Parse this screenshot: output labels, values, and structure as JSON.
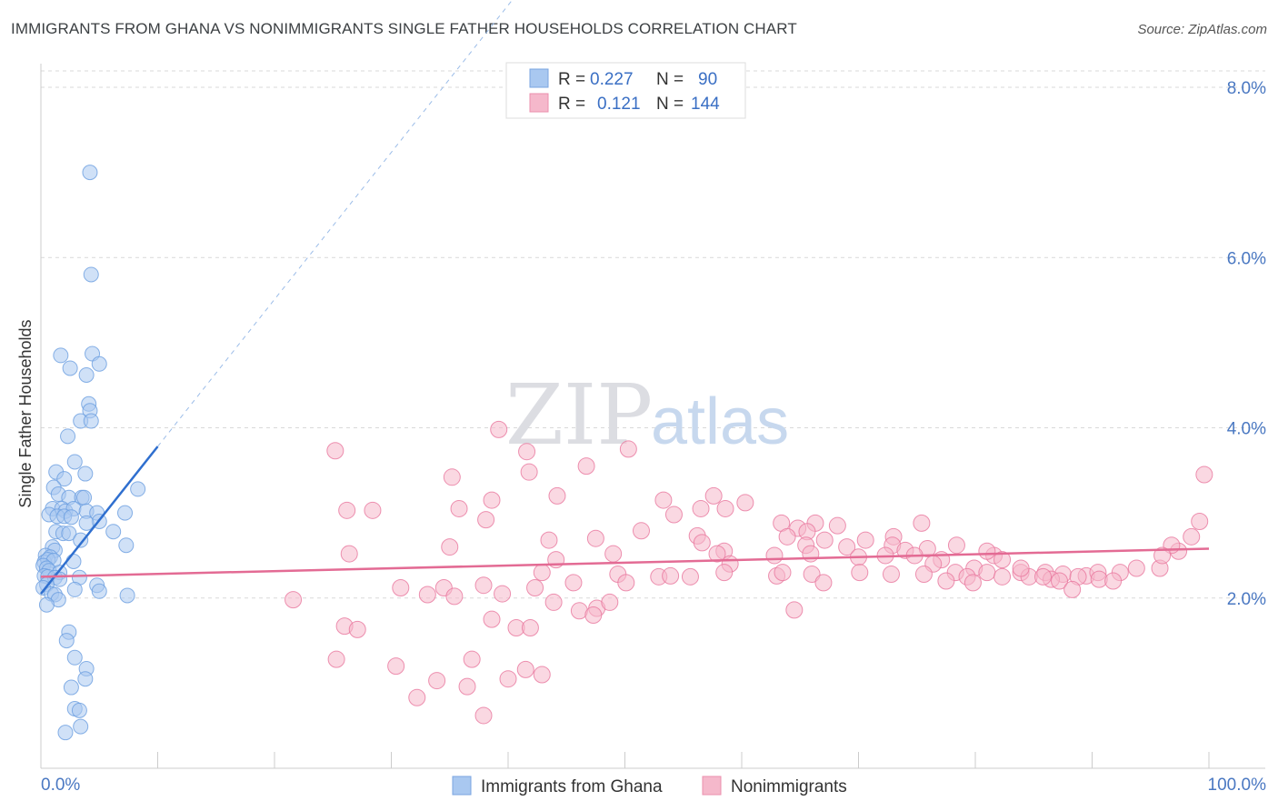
{
  "header": {
    "title": "IMMIGRANTS FROM GHANA VS NONIMMIGRANTS SINGLE FATHER HOUSEHOLDS CORRELATION CHART",
    "source": "Source: ZipAtlas.com"
  },
  "watermark": {
    "zip": "ZIP",
    "atlas": "atlas"
  },
  "legend_box": {
    "rows": [
      {
        "r_label": "R =",
        "r_value": "0.227",
        "n_label": "N =",
        "n_value": "90",
        "color": "#a9c8f0"
      },
      {
        "r_label": "R =",
        "r_value": "0.121",
        "n_label": "N =",
        "n_value": "144",
        "color": "#f5b8cb"
      }
    ]
  },
  "chart_data": {
    "type": "scatter",
    "title": "IMMIGRANTS FROM GHANA VS NONIMMIGRANTS SINGLE FATHER HOUSEHOLDS CORRELATION CHART",
    "xlabel": "",
    "ylabel": "Single Father Households",
    "xlim": [
      0,
      100
    ],
    "ylim": [
      0,
      8.3
    ],
    "x_tick_labels": [
      "0.0%",
      "100.0%"
    ],
    "y_ticks": [
      2,
      4,
      6,
      8
    ],
    "y_tick_labels": [
      "2.0%",
      "4.0%",
      "6.0%",
      "8.0%"
    ],
    "grid": "horizontal dashed",
    "legend_position": "bottom",
    "series": [
      {
        "name": "Immigrants from Ghana",
        "color": "#6a9ee0",
        "fill": "#a9c8f0",
        "trend": {
          "x": [
            0,
            10
          ],
          "y": [
            2.05,
            3.78
          ],
          "dashed_extension": {
            "x": [
              10,
              40.5
            ],
            "y": [
              3.78,
              9.05
            ]
          }
        },
        "points": [
          [
            4.2,
            7.0
          ],
          [
            4.3,
            5.8
          ],
          [
            1.7,
            4.85
          ],
          [
            4.4,
            4.87
          ],
          [
            5.0,
            4.75
          ],
          [
            2.5,
            4.7
          ],
          [
            3.9,
            4.62
          ],
          [
            4.1,
            4.28
          ],
          [
            4.2,
            4.2
          ],
          [
            3.4,
            4.08
          ],
          [
            4.3,
            4.08
          ],
          [
            2.3,
            3.9
          ],
          [
            2.9,
            3.6
          ],
          [
            1.3,
            3.48
          ],
          [
            3.8,
            3.46
          ],
          [
            2.0,
            3.4
          ],
          [
            1.1,
            3.3
          ],
          [
            8.3,
            3.28
          ],
          [
            1.5,
            3.22
          ],
          [
            2.4,
            3.18
          ],
          [
            3.5,
            3.18
          ],
          [
            3.7,
            3.18
          ],
          [
            1.0,
            3.05
          ],
          [
            1.8,
            3.05
          ],
          [
            2.1,
            3.02
          ],
          [
            2.8,
            3.05
          ],
          [
            3.9,
            3.02
          ],
          [
            0.7,
            2.98
          ],
          [
            1.4,
            2.96
          ],
          [
            2.0,
            2.96
          ],
          [
            2.6,
            2.95
          ],
          [
            4.8,
            3.0
          ],
          [
            7.2,
            3.0
          ],
          [
            5.0,
            2.9
          ],
          [
            3.9,
            2.88
          ],
          [
            1.3,
            2.78
          ],
          [
            1.9,
            2.76
          ],
          [
            2.4,
            2.76
          ],
          [
            6.2,
            2.78
          ],
          [
            3.4,
            2.68
          ],
          [
            1.0,
            2.6
          ],
          [
            1.2,
            2.56
          ],
          [
            7.3,
            2.62
          ],
          [
            0.4,
            2.5
          ],
          [
            0.8,
            2.48
          ],
          [
            0.3,
            2.42
          ],
          [
            0.6,
            2.45
          ],
          [
            1.1,
            2.44
          ],
          [
            2.8,
            2.43
          ],
          [
            0.2,
            2.38
          ],
          [
            0.5,
            2.35
          ],
          [
            0.7,
            2.32
          ],
          [
            1.6,
            2.3
          ],
          [
            0.3,
            2.26
          ],
          [
            0.6,
            2.25
          ],
          [
            1.2,
            2.24
          ],
          [
            1.6,
            2.22
          ],
          [
            3.3,
            2.24
          ],
          [
            0.5,
            2.16
          ],
          [
            0.2,
            2.12
          ],
          [
            2.9,
            2.1
          ],
          [
            4.8,
            2.15
          ],
          [
            5.0,
            2.08
          ],
          [
            0.9,
            2.05
          ],
          [
            1.2,
            2.04
          ],
          [
            1.5,
            1.98
          ],
          [
            7.4,
            2.03
          ],
          [
            0.5,
            1.92
          ],
          [
            2.4,
            1.6
          ],
          [
            2.2,
            1.5
          ],
          [
            2.9,
            1.3
          ],
          [
            3.9,
            1.17
          ],
          [
            3.8,
            1.05
          ],
          [
            2.6,
            0.95
          ],
          [
            2.9,
            0.7
          ],
          [
            3.3,
            0.68
          ],
          [
            2.1,
            0.42
          ],
          [
            3.4,
            0.49
          ]
        ]
      },
      {
        "name": "Nonimmigrants",
        "color": "#e8779e",
        "fill": "#f5b8cb",
        "trend": {
          "x": [
            0,
            100
          ],
          "y": [
            2.25,
            2.58
          ]
        },
        "points": [
          [
            39.2,
            3.98
          ],
          [
            25.2,
            3.73
          ],
          [
            50.3,
            3.75
          ],
          [
            41.6,
            3.72
          ],
          [
            46.7,
            3.55
          ],
          [
            41.8,
            3.48
          ],
          [
            35.2,
            3.42
          ],
          [
            44.2,
            3.2
          ],
          [
            38.6,
            3.15
          ],
          [
            26.2,
            3.03
          ],
          [
            28.4,
            3.03
          ],
          [
            35.8,
            3.05
          ],
          [
            53.3,
            3.15
          ],
          [
            57.6,
            3.2
          ],
          [
            60.3,
            3.12
          ],
          [
            54.2,
            2.98
          ],
          [
            56.5,
            3.05
          ],
          [
            58.6,
            3.05
          ],
          [
            38.1,
            2.92
          ],
          [
            63.4,
            2.88
          ],
          [
            75.4,
            2.88
          ],
          [
            66.3,
            2.88
          ],
          [
            64.8,
            2.82
          ],
          [
            65.6,
            2.78
          ],
          [
            68.2,
            2.85
          ],
          [
            63.9,
            2.72
          ],
          [
            56.2,
            2.73
          ],
          [
            51.4,
            2.79
          ],
          [
            56.6,
            2.65
          ],
          [
            47.5,
            2.7
          ],
          [
            43.5,
            2.68
          ],
          [
            67.1,
            2.68
          ],
          [
            70.6,
            2.68
          ],
          [
            73.0,
            2.72
          ],
          [
            69.0,
            2.6
          ],
          [
            72.9,
            2.62
          ],
          [
            65.5,
            2.62
          ],
          [
            58.5,
            2.55
          ],
          [
            35.0,
            2.6
          ],
          [
            26.4,
            2.52
          ],
          [
            57.9,
            2.52
          ],
          [
            49.0,
            2.52
          ],
          [
            74.0,
            2.56
          ],
          [
            59.0,
            2.4
          ],
          [
            62.8,
            2.5
          ],
          [
            65.9,
            2.52
          ],
          [
            70.0,
            2.48
          ],
          [
            75.9,
            2.58
          ],
          [
            74.8,
            2.5
          ],
          [
            72.3,
            2.5
          ],
          [
            81.6,
            2.5
          ],
          [
            77.1,
            2.45
          ],
          [
            76.4,
            2.4
          ],
          [
            44.1,
            2.45
          ],
          [
            49.4,
            2.28
          ],
          [
            52.9,
            2.25
          ],
          [
            53.9,
            2.26
          ],
          [
            58.5,
            2.3
          ],
          [
            63.0,
            2.26
          ],
          [
            66.0,
            2.28
          ],
          [
            72.8,
            2.28
          ],
          [
            70.1,
            2.3
          ],
          [
            78.3,
            2.3
          ],
          [
            79.9,
            2.35
          ],
          [
            81.0,
            2.3
          ],
          [
            82.3,
            2.25
          ],
          [
            83.9,
            2.3
          ],
          [
            86.0,
            2.3
          ],
          [
            87.5,
            2.28
          ],
          [
            89.5,
            2.26
          ],
          [
            90.5,
            2.3
          ],
          [
            92.4,
            2.3
          ],
          [
            93.8,
            2.35
          ],
          [
            95.8,
            2.35
          ],
          [
            97.4,
            2.55
          ],
          [
            96.8,
            2.62
          ],
          [
            98.5,
            2.72
          ],
          [
            99.2,
            2.9
          ],
          [
            99.6,
            3.45
          ],
          [
            96.0,
            2.5
          ],
          [
            90.6,
            2.22
          ],
          [
            88.8,
            2.25
          ],
          [
            91.8,
            2.2
          ],
          [
            84.6,
            2.25
          ],
          [
            86.5,
            2.22
          ],
          [
            79.3,
            2.25
          ],
          [
            82.3,
            2.45
          ],
          [
            78.4,
            2.62
          ],
          [
            81.0,
            2.55
          ],
          [
            83.9,
            2.35
          ],
          [
            85.8,
            2.25
          ],
          [
            87.2,
            2.2
          ],
          [
            88.3,
            2.1
          ],
          [
            75.6,
            2.28
          ],
          [
            77.5,
            2.2
          ],
          [
            79.8,
            2.18
          ],
          [
            67.0,
            2.18
          ],
          [
            63.5,
            2.3
          ],
          [
            55.6,
            2.25
          ],
          [
            50.1,
            2.18
          ],
          [
            42.3,
            2.12
          ],
          [
            42.9,
            2.3
          ],
          [
            45.6,
            2.18
          ],
          [
            34.5,
            2.12
          ],
          [
            37.9,
            2.15
          ],
          [
            39.5,
            2.05
          ],
          [
            30.8,
            2.12
          ],
          [
            33.1,
            2.04
          ],
          [
            35.4,
            2.02
          ],
          [
            43.9,
            1.95
          ],
          [
            46.1,
            1.85
          ],
          [
            47.6,
            1.88
          ],
          [
            47.3,
            1.8
          ],
          [
            48.7,
            1.95
          ],
          [
            64.5,
            1.86
          ],
          [
            21.6,
            1.98
          ],
          [
            26.0,
            1.67
          ],
          [
            27.1,
            1.63
          ],
          [
            38.6,
            1.75
          ],
          [
            40.7,
            1.65
          ],
          [
            41.9,
            1.65
          ],
          [
            25.3,
            1.28
          ],
          [
            30.4,
            1.2
          ],
          [
            33.9,
            1.03
          ],
          [
            36.5,
            0.96
          ],
          [
            32.2,
            0.83
          ],
          [
            37.9,
            0.62
          ],
          [
            40.0,
            1.05
          ],
          [
            42.9,
            1.1
          ],
          [
            36.9,
            1.28
          ],
          [
            41.5,
            1.16
          ]
        ]
      }
    ]
  }
}
